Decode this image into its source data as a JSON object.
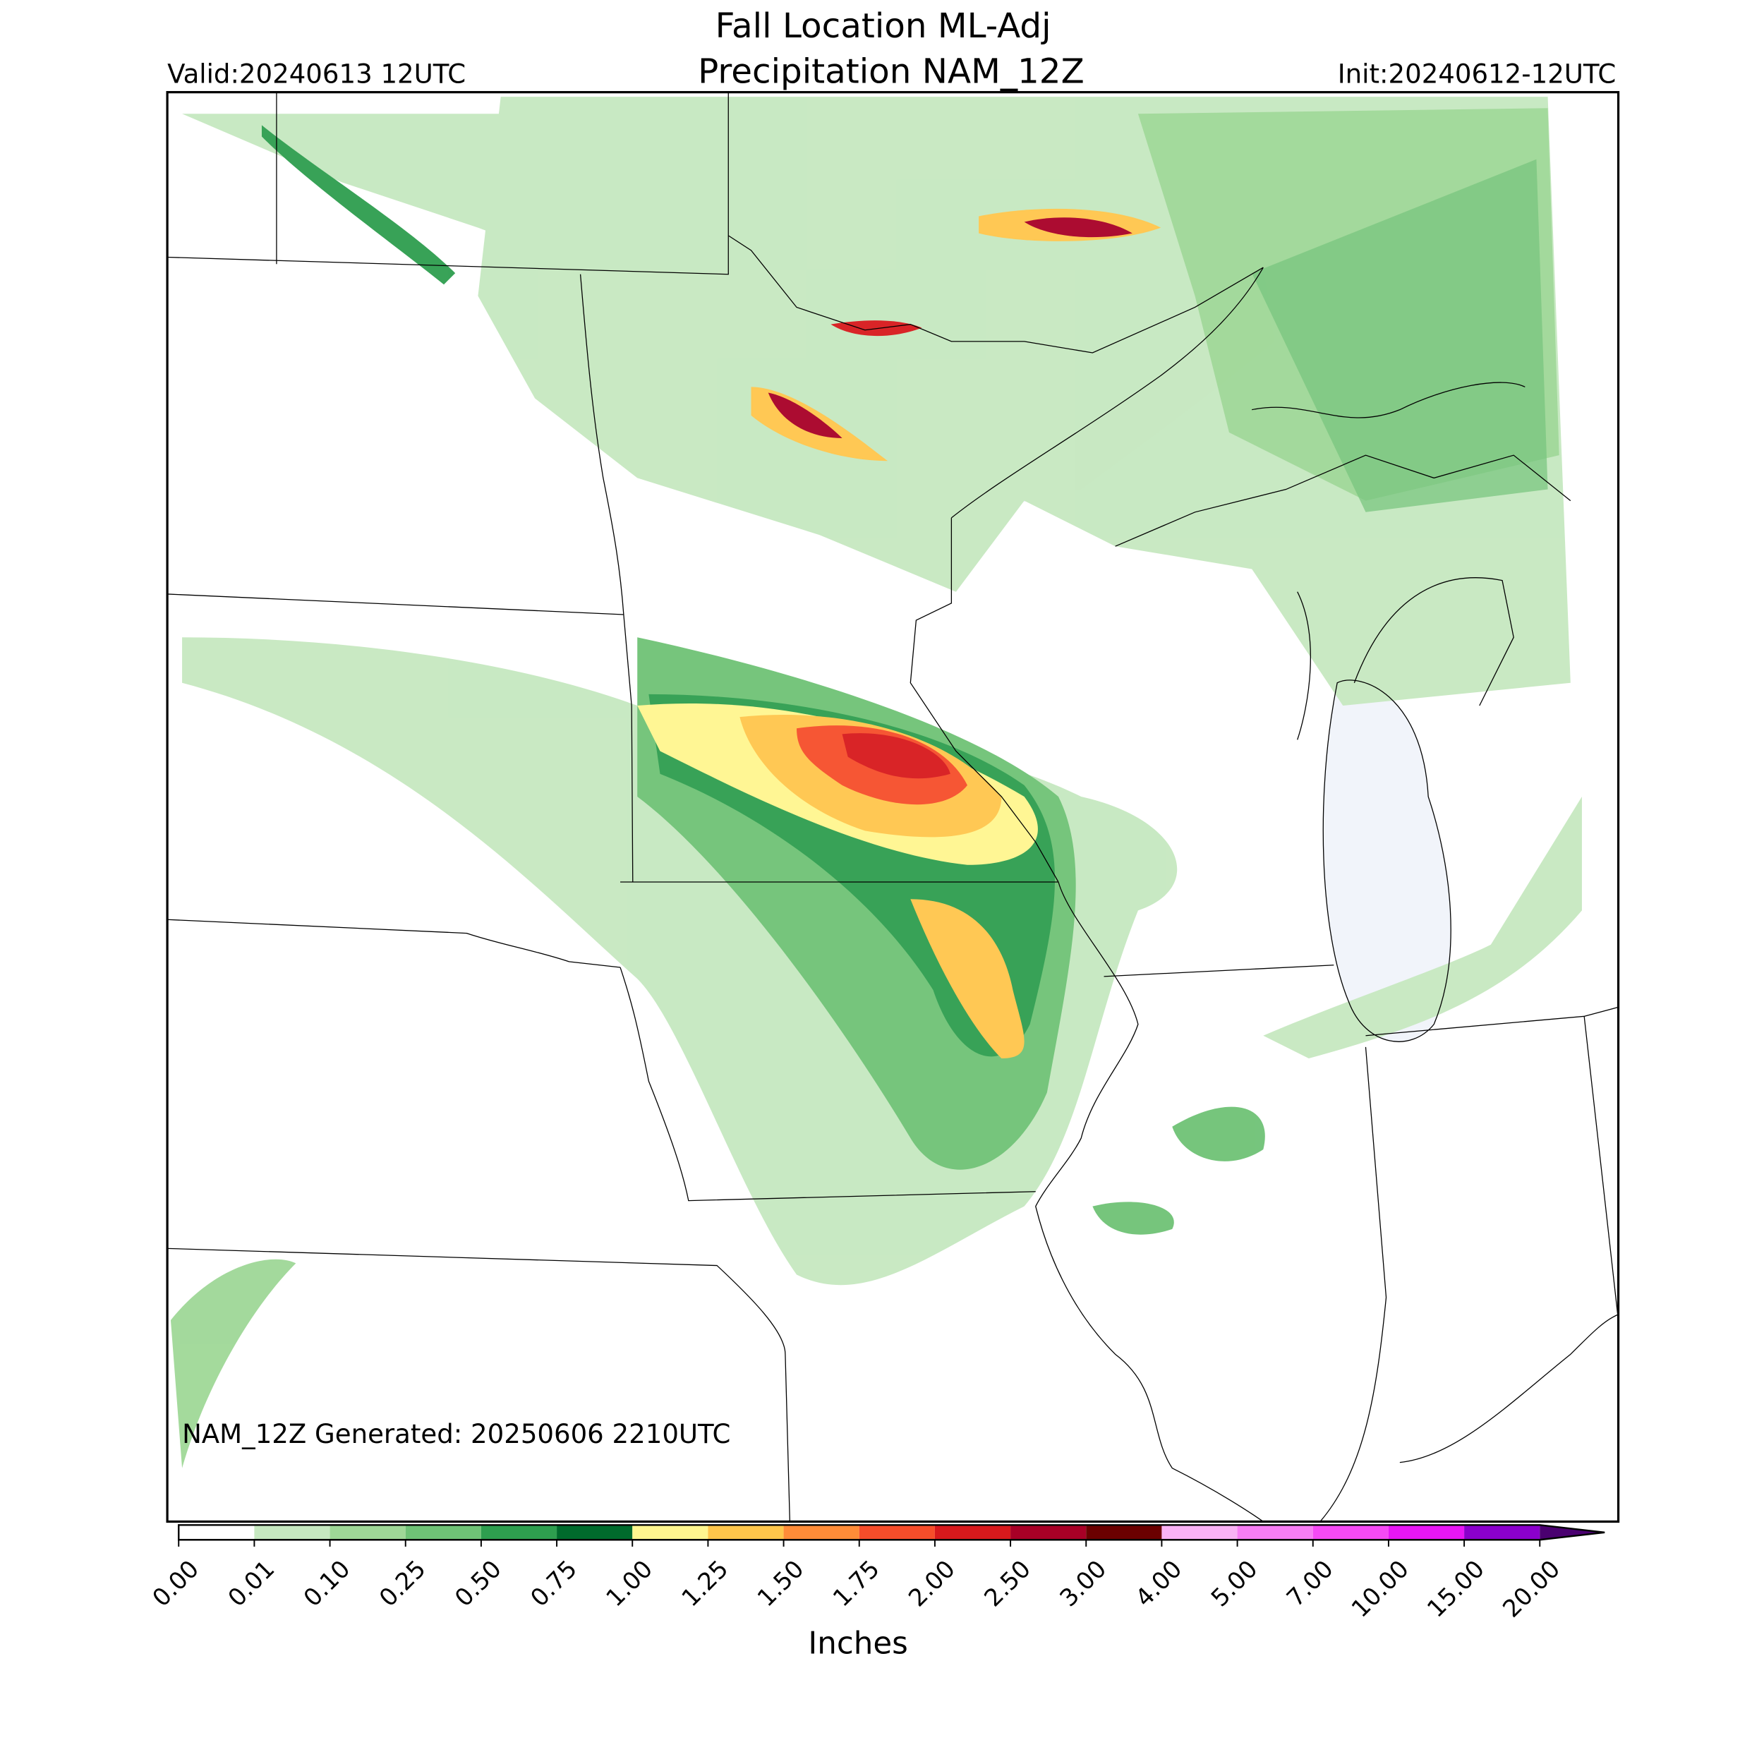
{
  "title": [
    "Fall Location ML-Adj",
    "Precipitation NAM_12Z"
  ],
  "valid": "Valid:20240613 12UTC",
  "init": "Init:20240612-12UTC",
  "generated": "NAM_12Z Generated: 20250606 2210UTC",
  "colorbar": {
    "label": "Inches",
    "ticks": [
      {
        "value": 0,
        "label": "0.00"
      },
      {
        "value": 0.01,
        "label": "0.01"
      },
      {
        "value": 0.1,
        "label": "0.10"
      },
      {
        "value": 0.25,
        "label": "0.25"
      },
      {
        "value": 0.5,
        "label": "0.50"
      },
      {
        "value": 0.75,
        "label": "0.75"
      },
      {
        "value": 1,
        "label": "1.00"
      },
      {
        "value": 1.25,
        "label": "1.25"
      },
      {
        "value": 1.5,
        "label": "1.50"
      },
      {
        "value": 1.75,
        "label": "1.75"
      },
      {
        "value": 2,
        "label": "2.00"
      },
      {
        "value": 2.5,
        "label": "2.50"
      },
      {
        "value": 3,
        "label": "3.00"
      },
      {
        "value": 4,
        "label": "4.00"
      },
      {
        "value": 5,
        "label": "5.00"
      },
      {
        "value": 7,
        "label": "7.00"
      },
      {
        "value": 10,
        "label": "10.00"
      },
      {
        "value": 15,
        "label": "15.00"
      },
      {
        "value": 20,
        "label": "20.00"
      }
    ],
    "colors": [
      "#ffffff",
      "#c6e8c0",
      "#9fd897",
      "#6fc276",
      "#2e9e4f",
      "#006a2c",
      "#fff68f",
      "#ffc64b",
      "#ff8c38",
      "#f64d2a",
      "#d7191c",
      "#a80026",
      "#6b0000",
      "#f9b2f5",
      "#f77ef4",
      "#f54af4",
      "#e716f4",
      "#8b00cc"
    ],
    "extend_color": "#4a0070"
  }
}
